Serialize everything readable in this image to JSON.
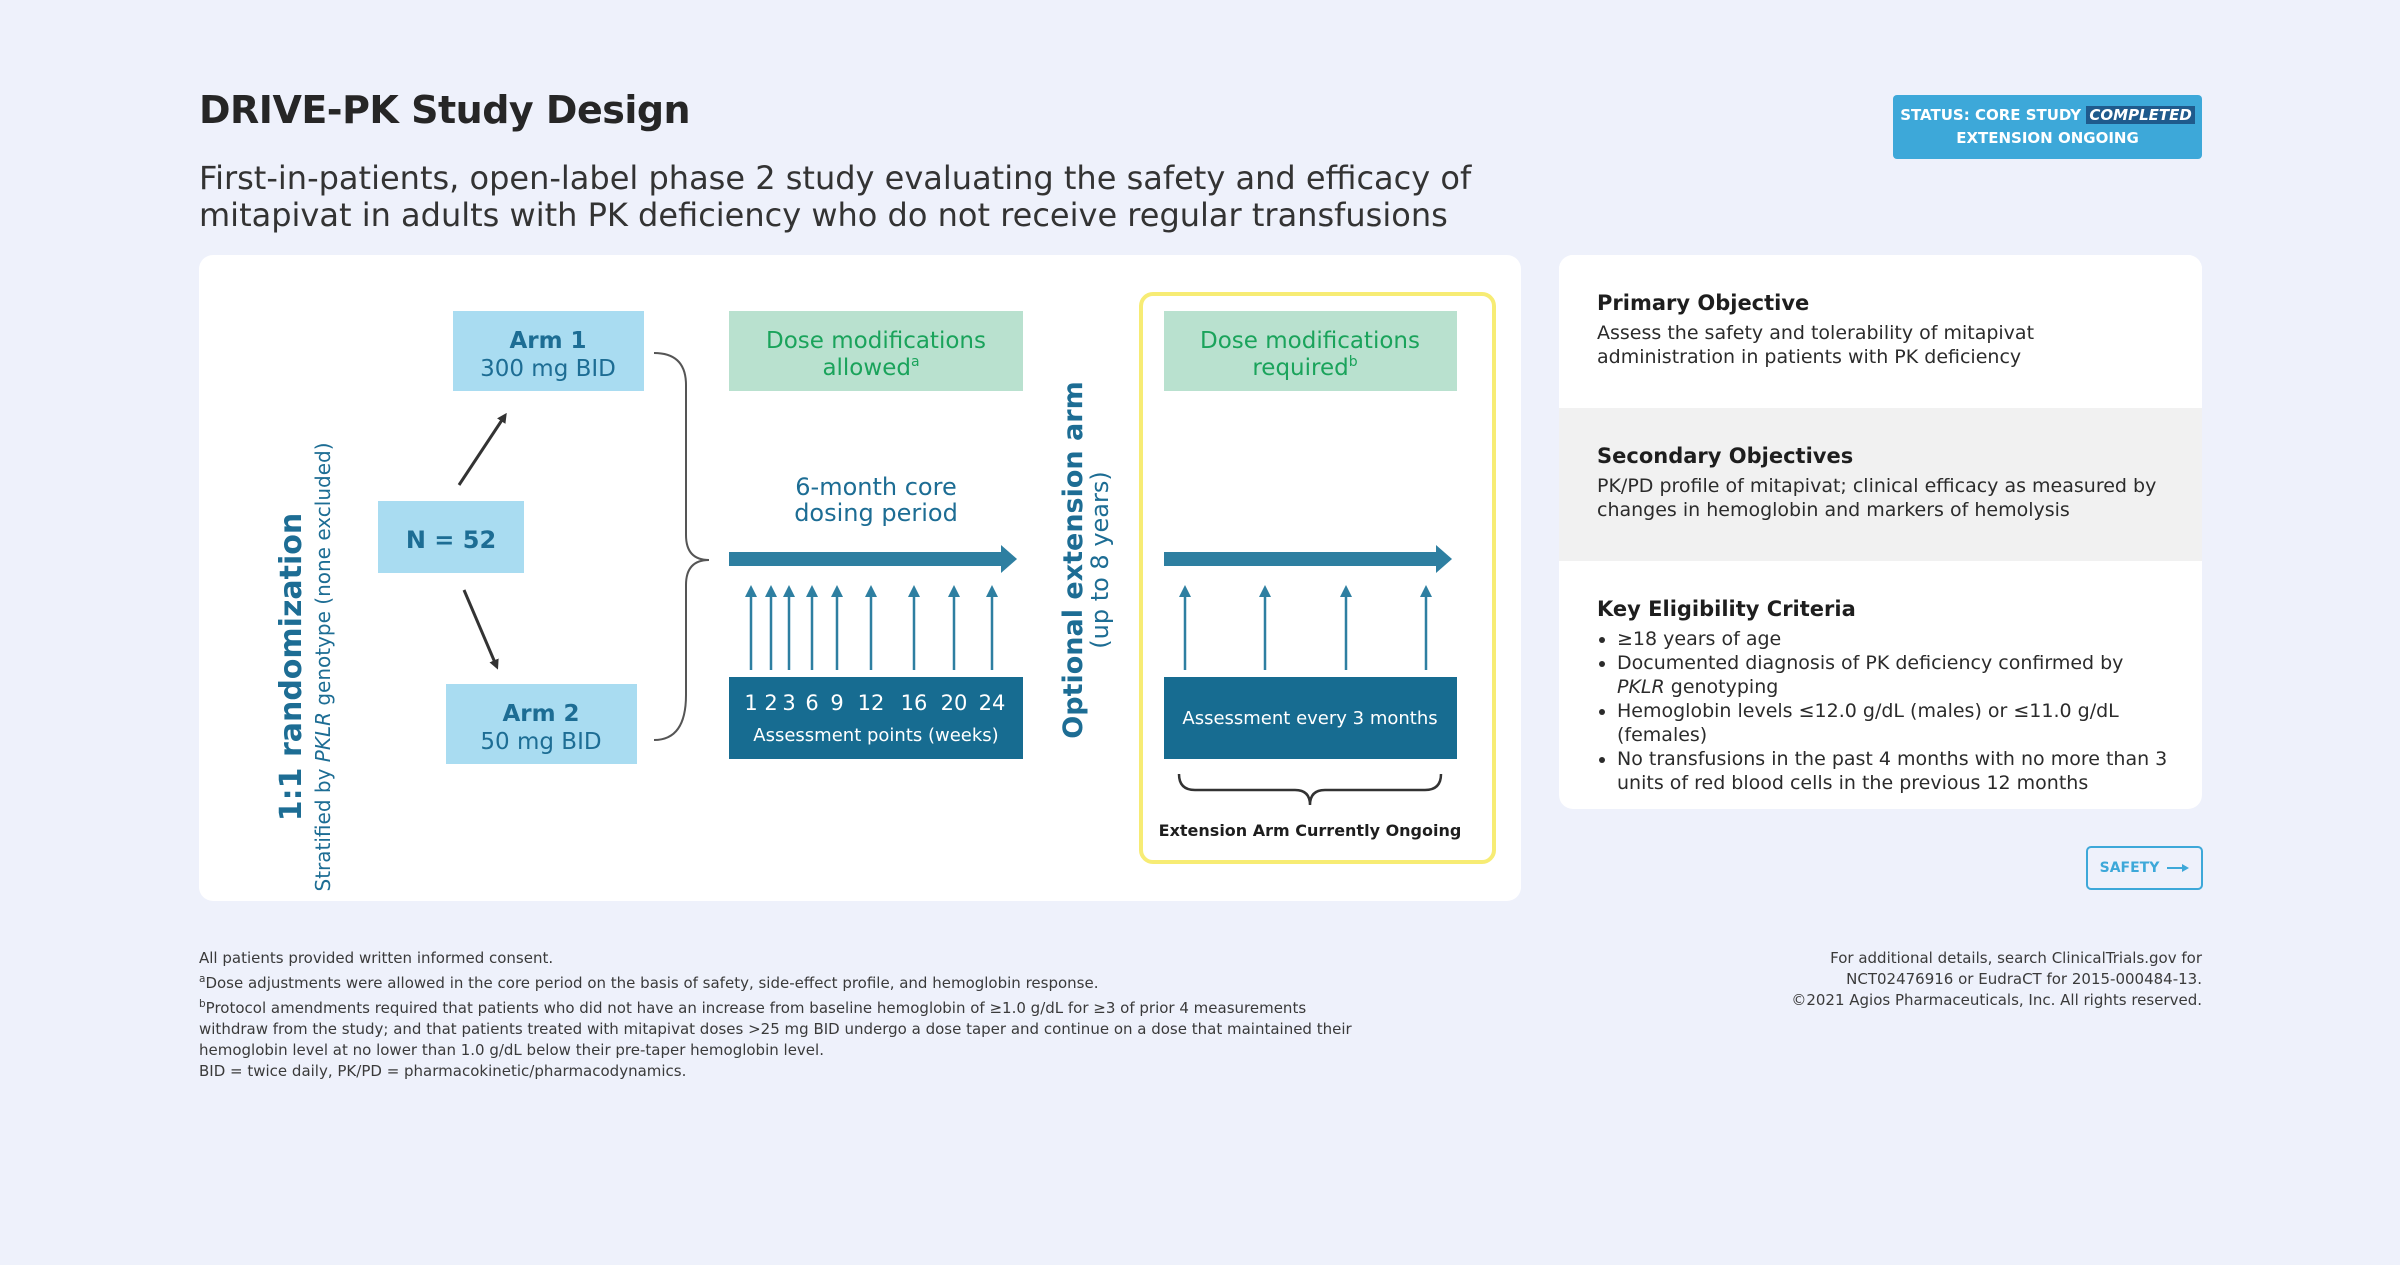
{
  "header": {
    "title": "DRIVE-PK Study Design",
    "subtitle": "First-in-patients, open-label phase 2 study evaluating the safety and efficacy of mitapivat in adults with PK deficiency who do not receive regular transfusions",
    "status_line1_prefix": "STATUS: CORE STUDY",
    "status_line1_highlight": "COMPLETED",
    "status_line2": "EXTENSION ONGOING"
  },
  "diagram": {
    "randomization_title": "1:1 randomization",
    "stratified_prefix": "Stratified by ",
    "stratified_gene": "PKLR",
    "stratified_suffix": " genotype (none excluded)",
    "n_label": "N = 52",
    "arm1_title": "Arm 1",
    "arm1_dose": "300 mg BID",
    "arm2_title": "Arm 2",
    "arm2_dose": "50 mg BID",
    "dose_mod_allowed_line1": "Dose modifications",
    "dose_mod_allowed_line2": "allowed",
    "dose_mod_allowed_sup": "a",
    "core_period_line1": "6-month core",
    "core_period_line2": "dosing period",
    "assessment_weeks": [
      "1",
      "2",
      "3",
      "6",
      "9",
      "12",
      "16",
      "20",
      "24"
    ],
    "assessment_label": "Assessment points (weeks)",
    "extension_title": "Optional extension arm",
    "extension_duration": "(up to 8 years)",
    "dose_mod_required_line1": "Dose modifications",
    "dose_mod_required_line2": "required",
    "dose_mod_required_sup": "b",
    "assessment_every": "Assessment every 3 months",
    "extension_ongoing": "Extension Arm Currently Ongoing",
    "colors": {
      "dark_teal": "#1d6d94",
      "light_blue_box": "#a9dcf1",
      "green_box": "#b9e1cf",
      "green_text": "#1aa35b",
      "yellow_border": "#f7ec74"
    }
  },
  "objectives": {
    "primary_heading": "Primary Objective",
    "primary_text": "Assess the safety and tolerability of mitapivat administration in patients with PK deficiency",
    "secondary_heading": "Secondary Objectives",
    "secondary_text": "PK/PD profile of mitapivat; clinical efficacy as measured by changes in hemoglobin and markers of hemolysis",
    "eligibility_heading": "Key Eligibility Criteria",
    "eligibility_items": [
      "≥18 years of age",
      "Documented diagnosis of PK deficiency confirmed by",
      "Hemoglobin levels ≤12.0 g/dL (males) or ≤11.0 g/dL (females)",
      "No transfusions in the past 4 months with no more than 3 units of red blood cells in the previous 12 months"
    ],
    "eligibility_item2_gene": "PKLR",
    "eligibility_item2_suffix": " genotyping"
  },
  "nav": {
    "safety_label": "SAFETY",
    "arrow_icon": "arrow-right-icon"
  },
  "footnotes": {
    "line1": "All patients provided written informed consent.",
    "note_a_mark": "a",
    "note_a": "Dose adjustments were allowed in the core period on the basis of safety, side-effect profile, and hemoglobin response.",
    "note_b_mark": "b",
    "note_b": "Protocol amendments required that patients who did not have an increase from baseline hemoglobin of ≥1.0 g/dL for ≥3 of prior 4 measurements withdraw from the study; and that patients treated with mitapivat doses >25 mg BID undergo a dose taper and continue on a dose that maintained their hemoglobin level at no lower than 1.0 g/dL below their pre-taper hemoglobin level.",
    "abbrev": "BID = twice daily, PK/PD = pharmacokinetic/pharmacodynamics."
  },
  "right_notes": {
    "line1": "For additional details, search ClinicalTrials.gov for",
    "line2": "NCT02476916 or EudraCT for 2015-000484-13.",
    "line3": "©2021 Agios Pharmaceuticals, Inc. All rights reserved."
  }
}
